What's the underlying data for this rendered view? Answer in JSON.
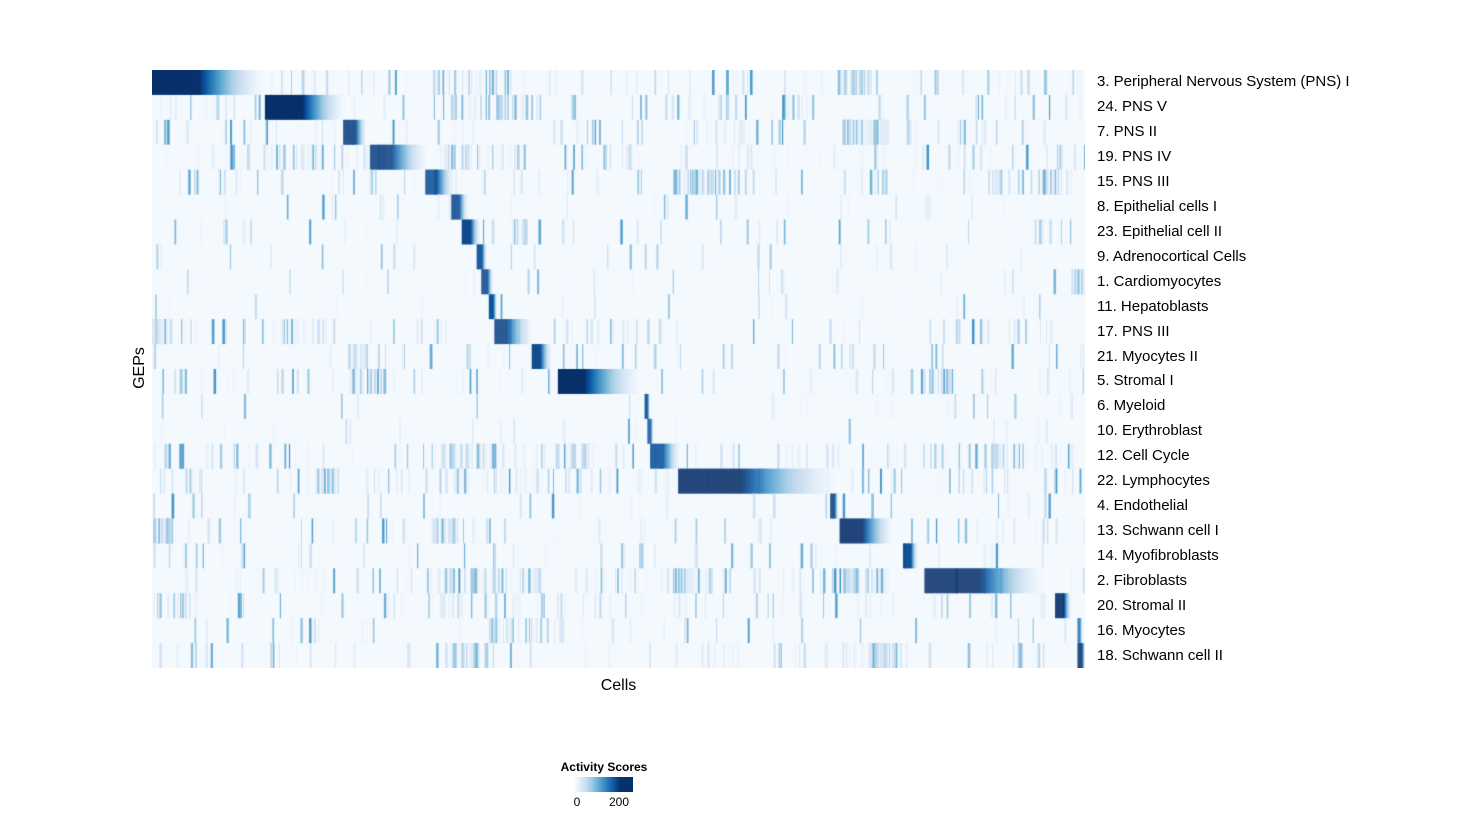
{
  "chart_data": {
    "type": "heatmap",
    "title": "",
    "xlabel": "Cells",
    "ylabel": "GEPs",
    "colormap": "Blues",
    "color_stops": [
      "#f7fbff",
      "#deebf7",
      "#c6dbef",
      "#9ecae1",
      "#6baed6",
      "#4292c6",
      "#2171b5",
      "#08519c",
      "#08306b"
    ],
    "value_range": [
      0,
      200
    ],
    "legend": {
      "title": "Activity Scores",
      "ticks": [
        "0",
        "200"
      ]
    },
    "description": "GEP activity score heatmap: each GEP row shows a dark-blue block of high-activity cells arranged diagonally; x0/x1 are fractions of the cell axis, peak is max normalized activity, solid is the fraction of the block at full intensity before fading, noise is background striation density.",
    "rows": [
      {
        "label": "3. Peripheral Nervous System (PNS) I",
        "block": {
          "x0": 0.0,
          "x1": 0.125,
          "peak": 1.0,
          "solid": 0.4
        },
        "noise": 0.5,
        "bands": [
          {
            "x0": 0.3,
            "x1": 0.4,
            "d": 0.5
          },
          {
            "x0": 0.735,
            "x1": 0.77,
            "d": 0.6
          }
        ]
      },
      {
        "label": "24. PNS V",
        "block": {
          "x0": 0.121,
          "x1": 0.21,
          "peak": 1.0,
          "solid": 0.45
        },
        "noise": 0.5,
        "bands": [
          {
            "x0": 0.3,
            "x1": 0.42,
            "d": 0.5
          }
        ]
      },
      {
        "label": "7. PNS II",
        "block": {
          "x0": 0.205,
          "x1": 0.231,
          "peak": 0.95,
          "solid": 0.5
        },
        "noise": 0.45,
        "bands": [
          {
            "x0": 0.74,
            "x1": 0.79,
            "d": 0.8
          }
        ]
      },
      {
        "label": "19. PNS IV",
        "block": {
          "x0": 0.234,
          "x1": 0.298,
          "peak": 0.95,
          "solid": 0.35
        },
        "noise": 0.55,
        "bands": [
          {
            "x0": 0.12,
            "x1": 0.21,
            "d": 0.6
          },
          {
            "x0": 0.3,
            "x1": 0.4,
            "d": 0.4
          }
        ]
      },
      {
        "label": "15. PNS III",
        "block": {
          "x0": 0.293,
          "x1": 0.325,
          "peak": 0.9,
          "solid": 0.4
        },
        "noise": 0.5,
        "bands": [
          {
            "x0": 0.56,
            "x1": 0.62,
            "d": 0.4
          },
          {
            "x0": 0.86,
            "x1": 0.98,
            "d": 0.5
          }
        ]
      },
      {
        "label": "8. Epithelial cells I",
        "block": {
          "x0": 0.321,
          "x1": 0.339,
          "peak": 0.92,
          "solid": 0.45
        },
        "noise": 0.2,
        "bands": []
      },
      {
        "label": "23. Epithelial cell II",
        "block": {
          "x0": 0.332,
          "x1": 0.352,
          "peak": 0.92,
          "solid": 0.45
        },
        "noise": 0.25,
        "bands": [
          {
            "x0": 0.385,
            "x1": 0.4,
            "d": 0.4
          }
        ]
      },
      {
        "label": "9. Adrenocortical Cells",
        "block": {
          "x0": 0.348,
          "x1": 0.359,
          "peak": 0.88,
          "solid": 0.5
        },
        "noise": 0.15,
        "bands": []
      },
      {
        "label": "1. Cardiomyocytes",
        "block": {
          "x0": 0.353,
          "x1": 0.366,
          "peak": 0.92,
          "solid": 0.5
        },
        "noise": 0.15,
        "bands": [
          {
            "x0": 0.985,
            "x1": 1.0,
            "d": 0.4
          }
        ]
      },
      {
        "label": "11. Hepatoblasts",
        "block": {
          "x0": 0.361,
          "x1": 0.37,
          "peak": 0.85,
          "solid": 0.5
        },
        "noise": 0.12,
        "bands": []
      },
      {
        "label": "17. PNS III",
        "block": {
          "x0": 0.367,
          "x1": 0.41,
          "peak": 0.95,
          "solid": 0.3
        },
        "noise": 0.45,
        "bands": [
          {
            "x0": 0.0,
            "x1": 0.02,
            "d": 0.8
          },
          {
            "x0": 0.13,
            "x1": 0.2,
            "d": 0.4
          }
        ]
      },
      {
        "label": "21. Myocytes II",
        "block": {
          "x0": 0.407,
          "x1": 0.429,
          "peak": 0.92,
          "solid": 0.4
        },
        "noise": 0.3,
        "bands": [
          {
            "x0": 0.21,
            "x1": 0.23,
            "d": 0.4
          },
          {
            "x0": 0.995,
            "x1": 1.0,
            "d": 0.8
          }
        ]
      },
      {
        "label": "5. Stromal I",
        "block": {
          "x0": 0.435,
          "x1": 0.528,
          "peak": 1.0,
          "solid": 0.3
        },
        "noise": 0.4,
        "bands": [
          {
            "x0": 0.21,
            "x1": 0.25,
            "d": 0.5
          },
          {
            "x0": 0.82,
            "x1": 0.86,
            "d": 0.4
          }
        ]
      },
      {
        "label": "6. Myeloid",
        "block": {
          "x0": 0.528,
          "x1": 0.533,
          "peak": 0.9,
          "solid": 0.6
        },
        "noise": 0.15,
        "bands": []
      },
      {
        "label": "10. Erythroblast",
        "block": {
          "x0": 0.531,
          "x1": 0.537,
          "peak": 0.85,
          "solid": 0.6
        },
        "noise": 0.12,
        "bands": []
      },
      {
        "label": "12. Cell Cycle",
        "block": {
          "x0": 0.534,
          "x1": 0.568,
          "peak": 0.88,
          "solid": 0.4
        },
        "noise": 0.55,
        "bands": [
          {
            "x0": 0.3,
            "x1": 0.37,
            "d": 0.7
          },
          {
            "x0": 0.43,
            "x1": 0.47,
            "d": 0.5
          },
          {
            "x0": 0.82,
            "x1": 0.97,
            "d": 0.5
          }
        ]
      },
      {
        "label": "22. Lymphocytes",
        "block": {
          "x0": 0.564,
          "x1": 0.742,
          "peak": 1.0,
          "solid": 0.38
        },
        "noise": 0.6,
        "bands": [
          {
            "x0": 0.3,
            "x1": 0.5,
            "d": 0.7
          },
          {
            "x0": 0.17,
            "x1": 0.2,
            "d": 0.4
          }
        ]
      },
      {
        "label": "4. Endothelial",
        "block": {
          "x0": 0.727,
          "x1": 0.736,
          "peak": 0.95,
          "solid": 0.5
        },
        "noise": 0.2,
        "bands": []
      },
      {
        "label": "13. Schwann cell I",
        "block": {
          "x0": 0.737,
          "x1": 0.797,
          "peak": 1.0,
          "solid": 0.4
        },
        "noise": 0.4,
        "bands": [
          {
            "x0": 0.0,
            "x1": 0.02,
            "d": 0.6
          },
          {
            "x0": 0.3,
            "x1": 0.33,
            "d": 0.4
          }
        ]
      },
      {
        "label": "14. Myofibroblasts",
        "block": {
          "x0": 0.805,
          "x1": 0.821,
          "peak": 0.9,
          "solid": 0.5
        },
        "noise": 0.3,
        "bands": []
      },
      {
        "label": "2. Fibroblasts",
        "block": {
          "x0": 0.828,
          "x1": 0.96,
          "peak": 1.0,
          "solid": 0.45
        },
        "noise": 0.55,
        "bands": [
          {
            "x0": 0.3,
            "x1": 0.42,
            "d": 0.6
          },
          {
            "x0": 0.55,
            "x1": 0.6,
            "d": 0.5
          },
          {
            "x0": 0.74,
            "x1": 0.79,
            "d": 0.5
          }
        ]
      },
      {
        "label": "20. Stromal II",
        "block": {
          "x0": 0.968,
          "x1": 0.986,
          "peak": 1.0,
          "solid": 0.5
        },
        "noise": 0.4,
        "bands": [
          {
            "x0": 0.0,
            "x1": 0.05,
            "d": 0.4
          },
          {
            "x0": 0.3,
            "x1": 0.4,
            "d": 0.4
          }
        ]
      },
      {
        "label": "16. Myocytes",
        "block": {
          "x0": 0.992,
          "x1": 0.997,
          "peak": 0.75,
          "solid": 0.5
        },
        "noise": 0.25,
        "bands": [
          {
            "x0": 0.36,
            "x1": 0.42,
            "d": 0.4
          }
        ]
      },
      {
        "label": "18. Schwann cell II",
        "block": {
          "x0": 0.992,
          "x1": 1.0,
          "peak": 1.0,
          "solid": 0.6
        },
        "noise": 0.4,
        "bands": [
          {
            "x0": 0.74,
            "x1": 0.81,
            "d": 0.7
          },
          {
            "x0": 0.3,
            "x1": 0.36,
            "d": 0.4
          }
        ]
      }
    ]
  }
}
